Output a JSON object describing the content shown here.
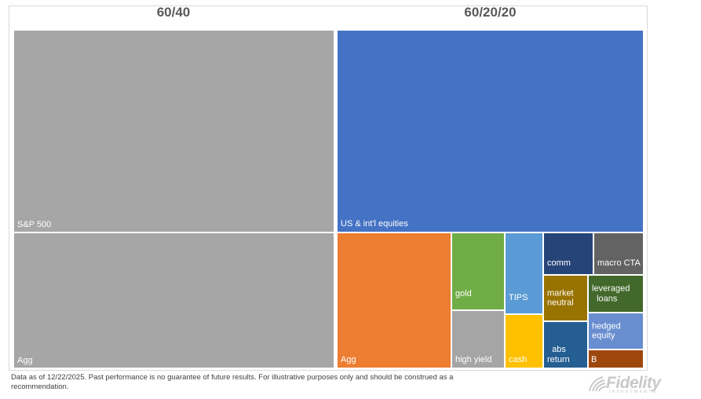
{
  "chart_data": [
    {
      "type": "treemap",
      "title": "60/40",
      "tiles": [
        {
          "label": "S&P 500",
          "value": 60,
          "color": "#a6a6a6"
        },
        {
          "label": "Agg",
          "value": 40,
          "color": "#a6a6a6"
        }
      ]
    },
    {
      "type": "treemap",
      "title": "60/20/20",
      "tiles": [
        {
          "label": "US & int'l equities",
          "value": 60,
          "color": "#4472c4"
        },
        {
          "label": "Agg",
          "value": 13.5,
          "color": "#ed7d31"
        },
        {
          "label": "gold",
          "value": 4.5,
          "color": "#70ad47"
        },
        {
          "label": "high yield",
          "value": 3.5,
          "color": "#a5a5a5"
        },
        {
          "label": "TIPS",
          "value": 3.5,
          "color": "#5b9bd5"
        },
        {
          "label": "cash",
          "value": 2.5,
          "color": "#ffc000"
        },
        {
          "label": "comm",
          "value": 2.5,
          "color": "#264478"
        },
        {
          "label": "macro CTA",
          "value": 2.5,
          "color": "#636363"
        },
        {
          "label": "market neutral",
          "value": 2,
          "color": "#997300"
        },
        {
          "label": "abs return",
          "value": 2,
          "color": "#255e91"
        },
        {
          "label": "leveraged loans",
          "value": 1.5,
          "color": "#43682b"
        },
        {
          "label": "hedged equity",
          "value": 1.5,
          "color": "#698ed0"
        },
        {
          "label": "B",
          "value": 0.5,
          "color": "#9e480e"
        }
      ]
    }
  ],
  "footnote": "Data as of 12/22/2025. Past performance is no guarantee of future results. For illustrative purposes only and should be construed as a recommendation.",
  "logo": {
    "name": "Fidelity",
    "tagline": "INVESTMENTS"
  }
}
